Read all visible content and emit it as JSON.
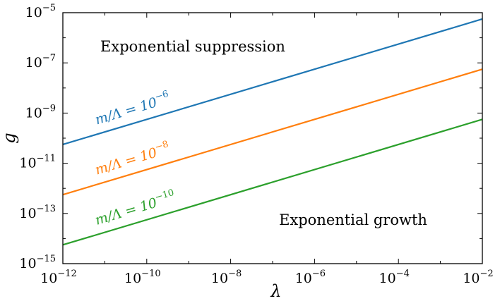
{
  "chart_data": {
    "type": "line",
    "title": "",
    "xlabel": "λ",
    "ylabel": "g",
    "xscale": "log",
    "yscale": "log",
    "xlim": [
      1e-12,
      0.01
    ],
    "ylim": [
      1e-15,
      1e-05
    ],
    "grid": false,
    "x_ticks": [
      {
        "base": "10",
        "exp": "−12",
        "value": 1e-12
      },
      {
        "base": "10",
        "exp": "−10",
        "value": 1e-10
      },
      {
        "base": "10",
        "exp": "−8",
        "value": 1e-08
      },
      {
        "base": "10",
        "exp": "−6",
        "value": 1e-06
      },
      {
        "base": "10",
        "exp": "−4",
        "value": 0.0001
      },
      {
        "base": "10",
        "exp": "−2",
        "value": 0.01
      }
    ],
    "y_ticks": [
      {
        "base": "10",
        "exp": "−15",
        "value": 1e-15
      },
      {
        "base": "10",
        "exp": "−13",
        "value": 1e-13
      },
      {
        "base": "10",
        "exp": "−11",
        "value": 1e-11
      },
      {
        "base": "10",
        "exp": "−9",
        "value": 1e-09
      },
      {
        "base": "10",
        "exp": "−7",
        "value": 1e-07
      },
      {
        "base": "10",
        "exp": "−5",
        "value": 1e-05
      }
    ],
    "series": [
      {
        "name": "m/Λ = 10−6",
        "label_main": "m/Λ = 10",
        "label_exp": "−6",
        "color": "#1f77b4",
        "x": [
          1e-12,
          0.01
        ],
        "y": [
          5.6e-11,
          5.6e-06
        ]
      },
      {
        "name": "m/Λ = 10−8",
        "label_main": "m/Λ = 10",
        "label_exp": "−8",
        "color": "#ff7f0e",
        "x": [
          1e-12,
          0.01
        ],
        "y": [
          5.6e-13,
          5.6e-08
        ]
      },
      {
        "name": "m/Λ = 10−10",
        "label_main": "m/Λ = 10",
        "label_exp": "−10",
        "color": "#2ca02c",
        "x": [
          1e-12,
          0.01
        ],
        "y": [
          5.6e-15,
          5.6e-10
        ]
      }
    ],
    "annotations": [
      "Exponential suppression",
      "Exponential growth"
    ]
  }
}
